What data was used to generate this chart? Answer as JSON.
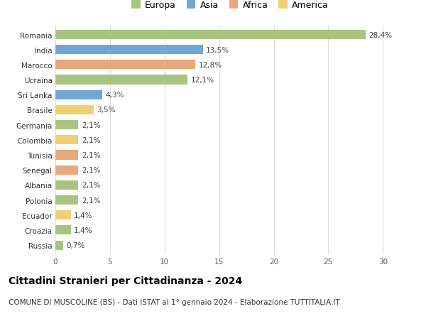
{
  "countries": [
    "Romania",
    "India",
    "Marocco",
    "Ucraina",
    "Sri Lanka",
    "Brasile",
    "Germania",
    "Colombia",
    "Tunisia",
    "Senegal",
    "Albania",
    "Polonia",
    "Ecuador",
    "Croazia",
    "Russia"
  ],
  "values": [
    28.4,
    13.5,
    12.8,
    12.1,
    4.3,
    3.5,
    2.1,
    2.1,
    2.1,
    2.1,
    2.1,
    2.1,
    1.4,
    1.4,
    0.7
  ],
  "labels": [
    "28,4%",
    "13,5%",
    "12,8%",
    "12,1%",
    "4,3%",
    "3,5%",
    "2,1%",
    "2,1%",
    "2,1%",
    "2,1%",
    "2,1%",
    "2,1%",
    "1,4%",
    "1,4%",
    "0,7%"
  ],
  "continents": [
    "Europa",
    "Asia",
    "Africa",
    "Europa",
    "Asia",
    "America",
    "Europa",
    "America",
    "Africa",
    "Africa",
    "Europa",
    "Europa",
    "America",
    "Europa",
    "Europa"
  ],
  "continent_colors": {
    "Europa": "#a8c47e",
    "Asia": "#6fa8d4",
    "Africa": "#e8a87c",
    "America": "#f0d070"
  },
  "legend_order": [
    "Europa",
    "Asia",
    "Africa",
    "America"
  ],
  "legend_colors": [
    "#a8c47e",
    "#6fa8d4",
    "#e8a87c",
    "#f0d070"
  ],
  "xlim": [
    0,
    32
  ],
  "xticks": [
    0,
    5,
    10,
    15,
    20,
    25,
    30
  ],
  "title": "Cittadini Stranieri per Cittadinanza - 2024",
  "subtitle": "COMUNE DI MUSCOLINE (BS) - Dati ISTAT al 1° gennaio 2024 - Elaborazione TUTTITALIA.IT",
  "bg_color": "#ffffff",
  "grid_color": "#dddddd",
  "bar_height": 0.62,
  "label_fontsize": 7.5,
  "tick_fontsize": 7.5,
  "title_fontsize": 10,
  "subtitle_fontsize": 7.5,
  "legend_fontsize": 9
}
